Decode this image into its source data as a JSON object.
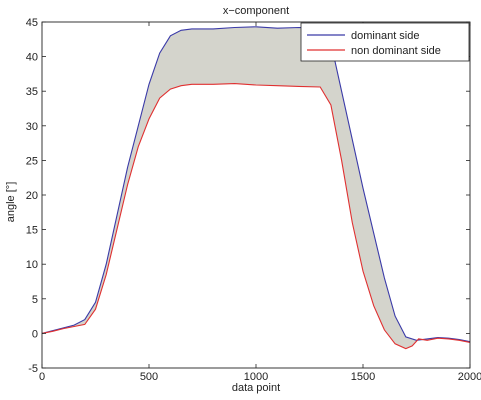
{
  "chart_data": {
    "type": "area",
    "title": "x−component",
    "xlabel": "data point",
    "ylabel": "angle [°]",
    "xlim": [
      0,
      2000
    ],
    "ylim": [
      -5,
      45
    ],
    "xticks": [
      0,
      500,
      1000,
      1500,
      2000
    ],
    "yticks": [
      -5,
      0,
      5,
      10,
      15,
      20,
      25,
      30,
      35,
      40,
      45
    ],
    "grid": false,
    "legend_position": "top-right",
    "fill_between_series": true,
    "fill_color": "#d4d4cc",
    "series": [
      {
        "name": "dominant side",
        "color": "#3a3aa8",
        "x": [
          0,
          50,
          100,
          150,
          200,
          250,
          300,
          350,
          400,
          450,
          500,
          550,
          600,
          650,
          700,
          800,
          900,
          1000,
          1100,
          1200,
          1300,
          1350,
          1400,
          1450,
          1500,
          1550,
          1600,
          1650,
          1700,
          1750,
          1800,
          1850,
          1900,
          1950,
          2000
        ],
        "values": [
          0,
          0.4,
          0.8,
          1.2,
          2.0,
          4.5,
          10,
          17,
          24,
          30,
          36,
          40.5,
          43,
          43.8,
          44,
          44,
          44.2,
          44.3,
          44.1,
          44.2,
          44.1,
          42,
          35,
          28,
          21,
          14.5,
          8,
          2.5,
          -0.5,
          -1,
          -0.8,
          -0.6,
          -0.7,
          -0.9,
          -1.2
        ]
      },
      {
        "name": "non dominant side",
        "color": "#e03030",
        "x": [
          0,
          50,
          100,
          150,
          200,
          250,
          300,
          350,
          400,
          450,
          500,
          550,
          600,
          650,
          700,
          800,
          900,
          1000,
          1100,
          1200,
          1300,
          1350,
          1400,
          1450,
          1500,
          1550,
          1600,
          1650,
          1700,
          1730,
          1760,
          1800,
          1850,
          1900,
          1950,
          2000
        ],
        "values": [
          0,
          0.3,
          0.7,
          1.0,
          1.3,
          3.5,
          8.5,
          15,
          21.5,
          27,
          31,
          34,
          35.3,
          35.8,
          36,
          36,
          36.1,
          35.9,
          35.8,
          35.7,
          35.6,
          33,
          25,
          16,
          9,
          4,
          0.5,
          -1.5,
          -2.2,
          -1.8,
          -0.8,
          -1.0,
          -0.7,
          -0.8,
          -1.0,
          -1.3
        ]
      }
    ]
  }
}
